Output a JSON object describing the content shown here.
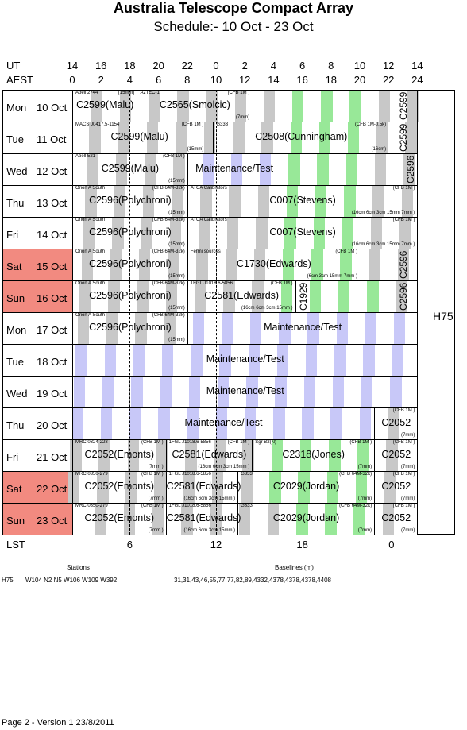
{
  "header": {
    "title": "Australia Telescope Compact Array",
    "subtitle": "Schedule:- 10 Oct - 23 Oct"
  },
  "axes": {
    "ut_label": "UT",
    "aest_label": "AEST",
    "lst_label": "LST",
    "ut_ticks": [
      "14",
      "16",
      "18",
      "20",
      "22",
      "0",
      "2",
      "4",
      "6",
      "8",
      "10",
      "12",
      "14"
    ],
    "aest_ticks": [
      "0",
      "2",
      "4",
      "6",
      "8",
      "10",
      "12",
      "14",
      "16",
      "18",
      "20",
      "22",
      "24"
    ],
    "lst_ticks": [
      {
        "label": "6",
        "aest": 4
      },
      {
        "label": "12",
        "aest": 10
      },
      {
        "label": "18",
        "aest": 16
      },
      {
        "label": "0",
        "aest": 22.2
      }
    ]
  },
  "array_config": "H75",
  "days": [
    {
      "dow": "Mon",
      "date": "10 Oct",
      "weekend": false
    },
    {
      "dow": "Tue",
      "date": "11 Oct",
      "weekend": false
    },
    {
      "dow": "Wed",
      "date": "12 Oct",
      "weekend": false
    },
    {
      "dow": "Thu",
      "date": "13 Oct",
      "weekend": false
    },
    {
      "dow": "Fri",
      "date": "14 Oct",
      "weekend": false
    },
    {
      "dow": "Sat",
      "date": "15 Oct",
      "weekend": true
    },
    {
      "dow": "Sun",
      "date": "16 Oct",
      "weekend": true
    },
    {
      "dow": "Mon",
      "date": "17 Oct",
      "weekend": false
    },
    {
      "dow": "Tue",
      "date": "18 Oct",
      "weekend": false
    },
    {
      "dow": "Wed",
      "date": "19 Oct",
      "weekend": false
    },
    {
      "dow": "Thu",
      "date": "20 Oct",
      "weekend": false
    },
    {
      "dow": "Fri",
      "date": "21 Oct",
      "weekend": false
    },
    {
      "dow": "Sat",
      "date": "22 Oct",
      "weekend": true
    },
    {
      "dow": "Sun",
      "date": "23 Oct",
      "weekend": true
    }
  ],
  "bookings": [
    [
      {
        "start": 0,
        "end": 4.5,
        "project": "C2599(Malu)",
        "source": "Abell 2744",
        "rx": "(15mm)"
      },
      {
        "start": 4.5,
        "end": 12.5,
        "project": "C2565(Smolcic)",
        "source": "AzTEC-1",
        "rx": "(CFB 1M )",
        "rx2": "(7mm)"
      },
      {
        "start": 22.5,
        "end": 24,
        "project": "C2599",
        "vertical": true
      }
    ],
    [
      {
        "start": 0,
        "end": 9.3,
        "project": "C2599(Malu)",
        "source": "MACS J0417.5-1154",
        "rx": "(CFB 1M )",
        "rx2": "(15mm)"
      },
      {
        "start": 9.8,
        "end": 22.0,
        "project": "C2508(Cunningham)",
        "source": "G333",
        "rx": "(CFB 1M-0.5k)",
        "rx2": "(16cm)"
      },
      {
        "start": 22.5,
        "end": 24,
        "project": "C2599",
        "vertical": true
      }
    ],
    [
      {
        "start": 0,
        "end": 8.0,
        "project": "C2599(Malu)",
        "source": "Abell 521",
        "rx": "(CFB 1M )",
        "rx2": "(15mm)"
      },
      {
        "start": 8.0,
        "end": 14.5,
        "project": "Maintenance/Test",
        "plain": true
      },
      {
        "start": 23.0,
        "end": 24,
        "project": "C2596",
        "vertical": true
      }
    ],
    [
      {
        "start": 0,
        "end": 8.0,
        "project": "C2596(Polychroni)",
        "source": "Orion A South",
        "rx": "(CFB 64M-32k)",
        "rx2": "(15mm)"
      },
      {
        "start": 8.0,
        "end": 24,
        "project": "C007(Stevens)",
        "source": "ATCA Calibrators",
        "rx": "(CFB 1M )",
        "rx2": "(16cm 6cm 3cm 15mm 7mm )"
      }
    ],
    [
      {
        "start": 0,
        "end": 8.0,
        "project": "C2596(Polychroni)",
        "source": "Orion A South",
        "rx": "(CFB 64M-32k)",
        "rx2": "(15mm)"
      },
      {
        "start": 8.0,
        "end": 24,
        "project": "C007(Stevens)",
        "source": "ATCA Calibrators",
        "rx": "(CFB 1M )",
        "rx2": "(16cm 6cm 3cm 15mm 7mm )"
      }
    ],
    [
      {
        "start": 0,
        "end": 8.0,
        "project": "C2596(Polychroni)",
        "source": "Orion A South",
        "rx": "(CFB 64M-32k)",
        "rx2": "(15mm)"
      },
      {
        "start": 8.0,
        "end": 20.0,
        "project": "C1730(Edwards)",
        "source": "Fermi sources",
        "rx": "(CFB 1M )",
        "rx2": "(6cm 3cm 15mm 7mm )"
      },
      {
        "start": 22.5,
        "end": 24,
        "project": "C2596",
        "vertical": true
      }
    ],
    [
      {
        "start": 0,
        "end": 8.0,
        "project": "C2596(Polychroni)",
        "source": "Orion A South",
        "rx": "(CFB 64M-32k)",
        "rx2": "(15mm)"
      },
      {
        "start": 8.0,
        "end": 15.5,
        "project": "C2581(Edwards)",
        "source": "1FGL J1018.6-5856",
        "rx": "(CFB 1M )",
        "rx2": "(16cm 6cm 3cm 15mm )"
      },
      {
        "start": 15.5,
        "end": 16.5,
        "project": "C1929",
        "vertical": true
      },
      {
        "start": 22.5,
        "end": 24,
        "project": "C2596",
        "vertical": true
      }
    ],
    [
      {
        "start": 0,
        "end": 8.0,
        "project": "C2596(Polychroni)",
        "source": "Orion A South",
        "rx": "(CFB 64M-32k)",
        "rx2": "(15mm)"
      },
      {
        "start": 8.0,
        "end": 24,
        "project": "Maintenance/Test",
        "plain": true
      }
    ],
    [
      {
        "start": 0,
        "end": 24,
        "project": "Maintenance/Test",
        "plain": true
      }
    ],
    [
      {
        "start": 0,
        "end": 24,
        "project": "Maintenance/Test",
        "plain": true
      }
    ],
    [
      {
        "start": 0,
        "end": 21.0,
        "project": "Maintenance/Test",
        "plain": true
      },
      {
        "start": 21.0,
        "end": 24,
        "project": "C2052",
        "source": "",
        "rx": "(CFB 1M )",
        "rx2": "(7mm)"
      }
    ],
    [
      {
        "start": 0,
        "end": 6.5,
        "project": "C2052(Emonts)",
        "source": "MRC 0324-228",
        "rx": "(CFB 1M )",
        "rx2": "(7mm )"
      },
      {
        "start": 6.5,
        "end": 12.5,
        "project": "C2581(Edwards)",
        "source": "1FGL J1018.6-5856",
        "rx": "(CFB 1M )",
        "rx2": "(16cm 6cm 3cm 15mm )"
      },
      {
        "start": 12.5,
        "end": 21.0,
        "project": "C2318(Jones)",
        "source": "Sgr B2(N)",
        "rx": "(CFB 1M )",
        "rx2": "(7mm)"
      },
      {
        "start": 21.0,
        "end": 24,
        "project": "C2052",
        "source": "",
        "rx": "(CFB 1M )",
        "rx2": "(7mm)"
      }
    ],
    [
      {
        "start": 0,
        "end": 6.5,
        "project": "C2052(Emonts)",
        "source": "MRC 0350-279",
        "rx": "(CFB 1M )",
        "rx2": "(7mm )"
      },
      {
        "start": 6.5,
        "end": 11.5,
        "project": "C2581(Edwards)",
        "source": "1FGL J1018.6-5856",
        "rx2": "(16cm 6cm 3cm 15mm )"
      },
      {
        "start": 11.5,
        "end": 21.0,
        "project": "C2029(Jordan)",
        "source": "G333",
        "rx": "(CFB 64M-32k)",
        "rx2": "(7mm)"
      },
      {
        "start": 21.0,
        "end": 24,
        "project": "C2052",
        "source": "",
        "rx": "(CFB 1M )",
        "rx2": "(7mm)"
      }
    ],
    [
      {
        "start": 0,
        "end": 6.5,
        "project": "C2052(Emonts)",
        "source": "MRC 0350-279",
        "rx": "(CFB 1M )",
        "rx2": "(7mm )"
      },
      {
        "start": 6.5,
        "end": 11.5,
        "project": "C2581(Edwards)",
        "source": "1FGL J1018.6-5856",
        "rx2": "(16cm 6cm 3cm 15mm )"
      },
      {
        "start": 11.5,
        "end": 21.0,
        "project": "C2029(Jordan)",
        "source": "G333",
        "rx": "(CFB 64M-32k)",
        "rx2": "(7mm)"
      },
      {
        "start": 21.0,
        "end": 24,
        "project": "C2052",
        "source": "",
        "rx": "(CFB 1M )",
        "rx2": "(7mm)"
      }
    ]
  ],
  "footer": {
    "stations_label": "Stations",
    "baselines_label": "Baselines (m)",
    "config": "H75",
    "stations": "W104 N2 N5 W106 W109 W392",
    "baselines": "31,31,43,46,55,77,77,82,89,4332,4378,4378,4378,4408",
    "version": "Page 2 - Version 1  23/8/2011"
  },
  "colors": {
    "weekend": "#f28a80",
    "grey_band": "#c8c8c8",
    "blue_band": "#c8c8f8",
    "green_band": "#98e898"
  }
}
